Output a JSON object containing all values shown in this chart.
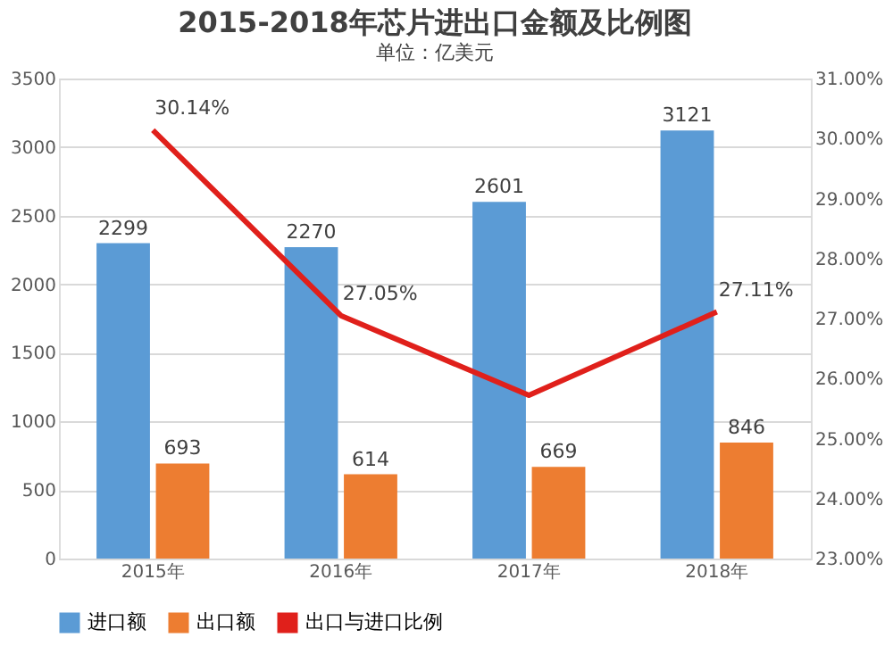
{
  "chart_data": {
    "type": "bar",
    "title": "2015-2018年芯片进出口金额及比例图",
    "subtitle": "单位：亿美元",
    "categories": [
      "2015年",
      "2016年",
      "2017年",
      "2018年"
    ],
    "series": [
      {
        "name": "进口额",
        "color": "#5b9bd5",
        "values": [
          2299,
          2270,
          2601,
          3121
        ],
        "value_labels": [
          "2299",
          "2270",
          "2601",
          "3121"
        ]
      },
      {
        "name": "出口额",
        "color": "#ed7d31",
        "values": [
          693,
          614,
          669,
          846
        ],
        "value_labels": [
          "693",
          "614",
          "669",
          "846"
        ]
      },
      {
        "name": "出口与进口比例",
        "color": "#e0201b",
        "type": "line",
        "axis": "y2",
        "values": [
          30.14,
          27.05,
          25.72,
          27.11
        ],
        "value_labels": [
          "30.14%",
          "27.05%",
          null,
          "27.11%"
        ]
      }
    ],
    "ylim": [
      0,
      3500
    ],
    "yticks": [
      0,
      500,
      1000,
      1500,
      2000,
      2500,
      3000,
      3500
    ],
    "y2lim": [
      23,
      31
    ],
    "y2ticks": [
      {
        "value": 23,
        "label": "23.00%"
      },
      {
        "value": 24,
        "label": "24.00%"
      },
      {
        "value": 25,
        "label": "25.00%"
      },
      {
        "value": 26,
        "label": "26.00%"
      },
      {
        "value": 27,
        "label": "27.00%"
      },
      {
        "value": 28,
        "label": "28.00%"
      },
      {
        "value": 29,
        "label": "29.00%"
      },
      {
        "value": 30,
        "label": "30.00%"
      },
      {
        "value": 31,
        "label": "31.00%"
      }
    ],
    "grid": "y",
    "legend": "bottom"
  }
}
